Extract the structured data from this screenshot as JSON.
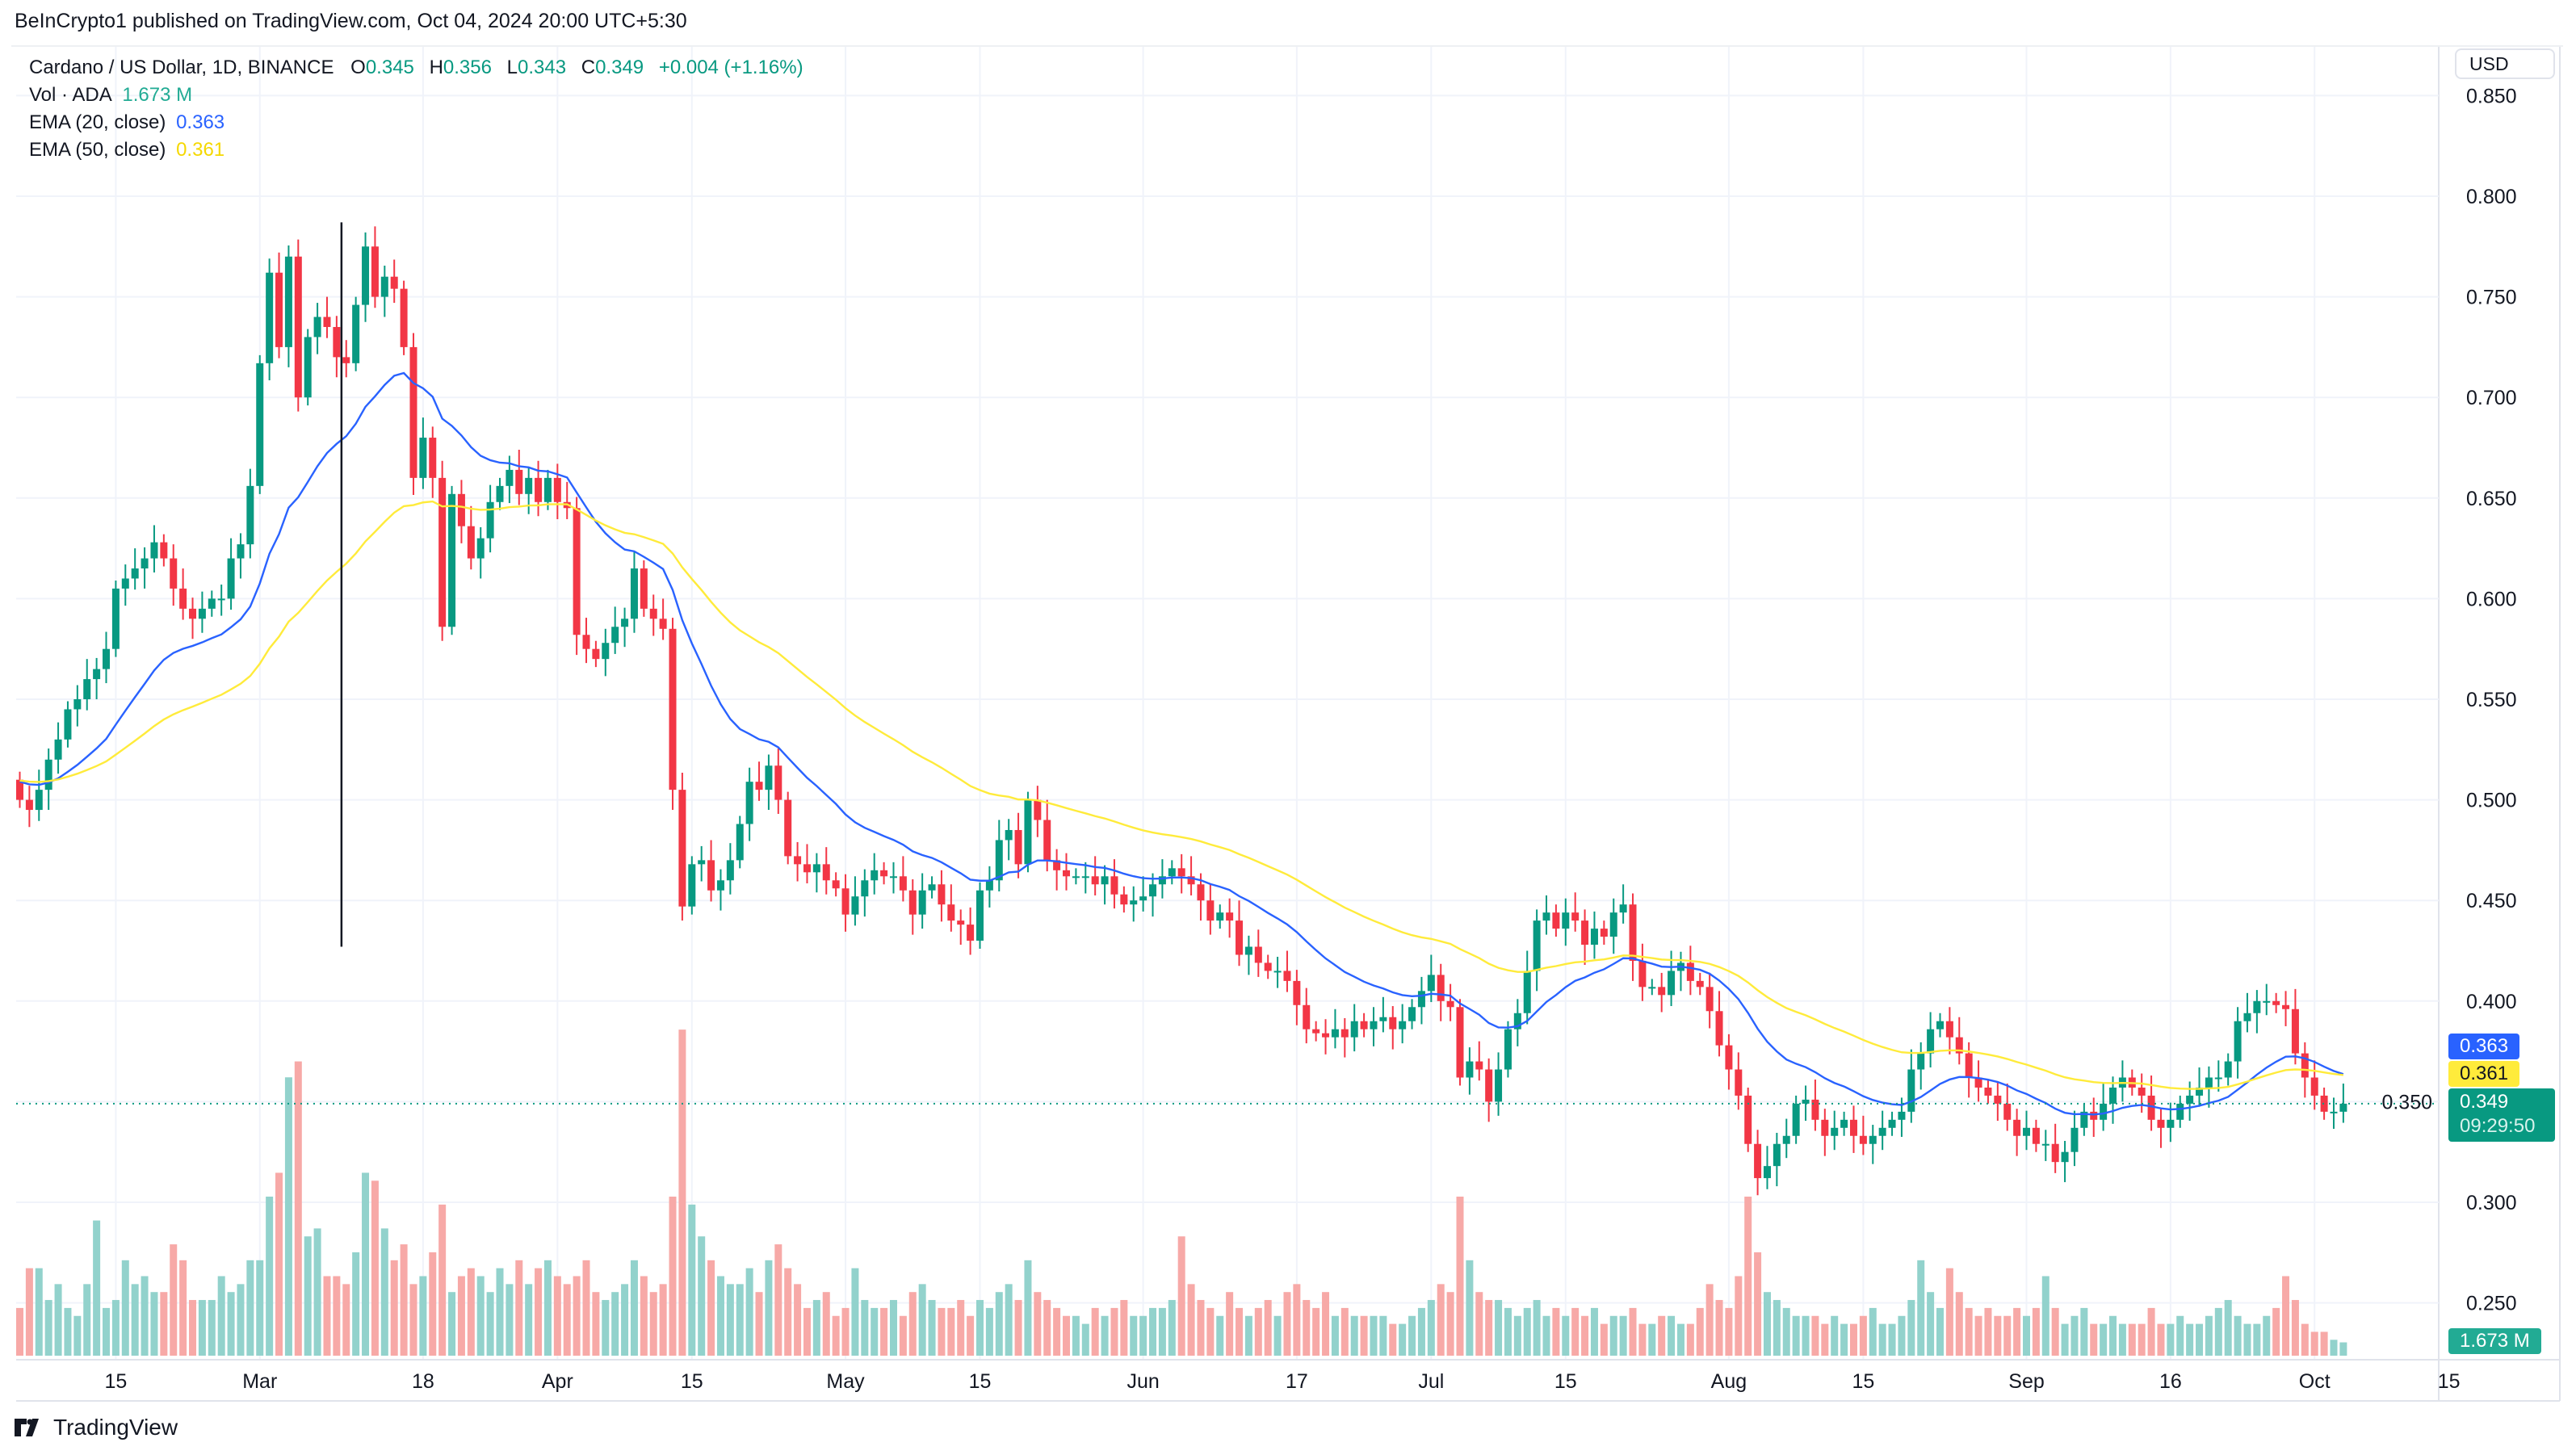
{
  "published": "BeInCrypto1 published on TradingView.com, Oct 04, 2024 20:00 UTC+5:30",
  "legend": {
    "symbol": "Cardano / US Dollar, 1D, BINANCE",
    "o_label": "O",
    "o": "0.345",
    "h_label": "H",
    "h": "0.356",
    "l_label": "L",
    "l": "0.343",
    "c_label": "C",
    "c": "0.349",
    "change": "+0.004 (+1.16%)",
    "vol_label": "Vol · ADA",
    "vol": "1.673 M",
    "ema20_label": "EMA (20, close)",
    "ema20": "0.363",
    "ema50_label": "EMA (50, close)",
    "ema50": "0.361"
  },
  "currency_button": "USD",
  "tags": {
    "ema20": "0.363",
    "ema50": "0.361",
    "price": "0.349",
    "countdown": "09:29:50",
    "volume": "1.673 M"
  },
  "brand": "TradingView",
  "colors": {
    "up": "#089981",
    "down": "#f23645",
    "vol_up": "#92d2cc",
    "vol_down": "#f7a9a7",
    "ema20": "#2962ff",
    "ema50": "#ffeb3b"
  },
  "chart_data": {
    "type": "candlestick",
    "title": "Cardano / US Dollar, 1D, BINANCE",
    "start_date": "2024-02-05",
    "first_open": 0.51,
    "ylim": [
      0.25,
      0.85
    ],
    "y_ticks": [
      "0.850",
      "0.800",
      "0.750",
      "0.700",
      "0.650",
      "0.600",
      "0.550",
      "0.500",
      "0.450",
      "0.400",
      "0.350",
      "0.300",
      "0.250"
    ],
    "x_ticks": [
      {
        "label": "15",
        "day": 10
      },
      {
        "label": "Mar",
        "day": 25
      },
      {
        "label": "18",
        "day": 42
      },
      {
        "label": "Apr",
        "day": 56
      },
      {
        "label": "15",
        "day": 70
      },
      {
        "label": "May",
        "day": 86
      },
      {
        "label": "15",
        "day": 100
      },
      {
        "label": "Jun",
        "day": 117
      },
      {
        "label": "17",
        "day": 133
      },
      {
        "label": "Jul",
        "day": 147
      },
      {
        "label": "15",
        "day": 161
      },
      {
        "label": "Aug",
        "day": 178
      },
      {
        "label": "15",
        "day": 192
      },
      {
        "label": "Sep",
        "day": 209
      },
      {
        "label": "16",
        "day": 224
      },
      {
        "label": "Oct",
        "day": 239
      },
      {
        "label": "15",
        "day": 253
      }
    ],
    "close": [
      0.5,
      0.495,
      0.505,
      0.52,
      0.53,
      0.545,
      0.55,
      0.56,
      0.565,
      0.575,
      0.605,
      0.61,
      0.615,
      0.62,
      0.628,
      0.62,
      0.605,
      0.595,
      0.59,
      0.595,
      0.6,
      0.6,
      0.62,
      0.627,
      0.656,
      0.717,
      0.762,
      0.725,
      0.77,
      0.7,
      0.73,
      0.74,
      0.735,
      0.72,
      0.717,
      0.746,
      0.775,
      0.75,
      0.76,
      0.754,
      0.725,
      0.66,
      0.68,
      0.66,
      0.586,
      0.652,
      0.636,
      0.62,
      0.63,
      0.648,
      0.656,
      0.664,
      0.652,
      0.66,
      0.648,
      0.66,
      0.648,
      0.645,
      0.582,
      0.575,
      0.57,
      0.578,
      0.586,
      0.59,
      0.615,
      0.595,
      0.59,
      0.585,
      0.505,
      0.447,
      0.468,
      0.47,
      0.455,
      0.46,
      0.47,
      0.488,
      0.509,
      0.505,
      0.517,
      0.5,
      0.472,
      0.468,
      0.464,
      0.468,
      0.46,
      0.456,
      0.443,
      0.452,
      0.46,
      0.465,
      0.462,
      0.462,
      0.455,
      0.443,
      0.455,
      0.458,
      0.448,
      0.44,
      0.438,
      0.43,
      0.455,
      0.46,
      0.48,
      0.485,
      0.468,
      0.5,
      0.49,
      0.47,
      0.465,
      0.462,
      0.462,
      0.462,
      0.458,
      0.462,
      0.453,
      0.448,
      0.45,
      0.452,
      0.458,
      0.462,
      0.466,
      0.462,
      0.458,
      0.45,
      0.44,
      0.444,
      0.44,
      0.423,
      0.427,
      0.419,
      0.415,
      0.415,
      0.41,
      0.398,
      0.386,
      0.384,
      0.382,
      0.386,
      0.382,
      0.39,
      0.386,
      0.39,
      0.392,
      0.386,
      0.39,
      0.397,
      0.405,
      0.413,
      0.4,
      0.397,
      0.362,
      0.37,
      0.366,
      0.35,
      0.366,
      0.386,
      0.394,
      0.415,
      0.44,
      0.444,
      0.436,
      0.444,
      0.44,
      0.428,
      0.436,
      0.432,
      0.444,
      0.448,
      0.42,
      0.407,
      0.407,
      0.403,
      0.415,
      0.419,
      0.41,
      0.407,
      0.395,
      0.378,
      0.366,
      0.353,
      0.329,
      0.312,
      0.318,
      0.329,
      0.333,
      0.349,
      0.351,
      0.341,
      0.333,
      0.337,
      0.341,
      0.333,
      0.329,
      0.333,
      0.337,
      0.341,
      0.345,
      0.366,
      0.374,
      0.386,
      0.39,
      0.382,
      0.374,
      0.362,
      0.357,
      0.353,
      0.349,
      0.341,
      0.333,
      0.337,
      0.329,
      0.329,
      0.32,
      0.325,
      0.337,
      0.345,
      0.341,
      0.349,
      0.357,
      0.362,
      0.357,
      0.353,
      0.341,
      0.337,
      0.341,
      0.349,
      0.353,
      0.357,
      0.362,
      0.362,
      0.37,
      0.39,
      0.394,
      0.4,
      0.4,
      0.398,
      0.396,
      0.374,
      0.362,
      0.353,
      0.345,
      0.345,
      0.349
    ],
    "volume_millions": [
      6,
      11,
      11,
      7,
      9,
      6,
      5,
      9,
      17,
      6,
      7,
      12,
      9,
      10,
      8,
      8,
      14,
      12,
      7,
      7,
      7,
      10,
      8,
      9,
      12,
      12,
      20,
      23,
      35,
      37,
      15,
      16,
      10,
      10,
      9,
      13,
      23,
      22,
      16,
      12,
      14,
      9,
      10,
      13,
      19,
      8,
      10,
      11,
      10,
      8,
      11,
      9,
      12,
      9,
      11,
      12,
      10,
      9,
      10,
      12,
      8,
      7,
      8,
      9,
      12,
      10,
      8,
      9,
      20,
      41,
      19,
      15,
      12,
      10,
      9,
      9,
      11,
      8,
      12,
      14,
      11,
      9,
      6,
      7,
      8,
      5,
      6,
      11,
      7,
      6,
      6,
      7,
      5,
      8,
      9,
      7,
      6,
      6,
      7,
      5,
      7,
      6,
      8,
      9,
      7,
      12,
      8,
      7,
      6,
      5,
      5,
      4,
      6,
      5,
      6,
      7,
      5,
      5,
      6,
      6,
      7,
      15,
      9,
      7,
      6,
      5,
      8,
      6,
      5,
      6,
      7,
      5,
      8,
      9,
      7,
      6,
      8,
      5,
      6,
      5,
      5,
      5,
      5,
      4,
      4,
      5,
      6,
      7,
      9,
      8,
      20,
      12,
      8,
      7,
      7,
      6,
      5,
      6,
      7,
      5,
      6,
      5,
      6,
      5,
      6,
      4,
      5,
      5,
      6,
      4,
      4,
      5,
      5,
      4,
      4,
      6,
      9,
      7,
      6,
      10,
      20,
      13,
      8,
      7,
      6,
      5,
      5,
      5,
      4,
      5,
      4,
      4,
      5,
      6,
      4,
      4,
      5,
      7,
      12,
      8,
      6,
      11,
      8,
      6,
      5,
      6,
      5,
      5,
      6,
      5,
      6,
      10,
      6,
      4,
      5,
      6,
      4,
      4,
      5,
      4,
      4,
      4,
      6,
      4,
      4,
      5,
      4,
      4,
      5,
      6,
      7,
      5,
      4,
      4,
      5,
      6,
      10,
      7,
      4,
      3,
      3,
      2,
      1.673
    ],
    "series": [
      {
        "name": "EMA (20, close)",
        "period": 20
      },
      {
        "name": "EMA (50, close)",
        "period": 50
      }
    ],
    "drawings": [
      {
        "type": "vertical-line",
        "day": 33,
        "from": 0.427,
        "to": 0.787
      }
    ],
    "current_price": 0.349
  }
}
